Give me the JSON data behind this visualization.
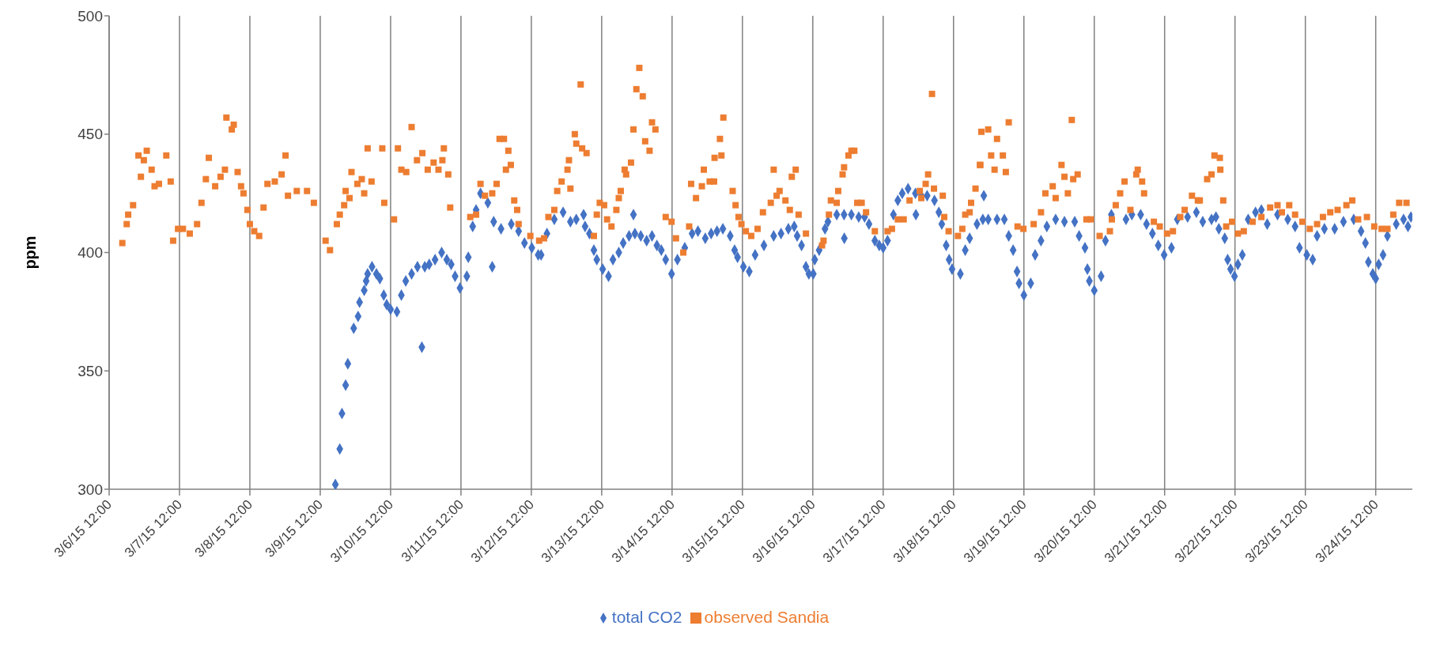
{
  "chart_data": {
    "type": "scatter",
    "ylabel": "ppm",
    "xlim": [
      "--03-06T12:00",
      "--03-25T00:30"
    ],
    "ylim": [
      300,
      500
    ],
    "yticks": [
      300,
      350,
      400,
      450,
      500
    ],
    "xticks": [
      {
        "value": "--03-06T12:00",
        "label": "3/6/15 12:00"
      },
      {
        "value": "--03-07T12:00",
        "label": "3/7/15 12:00"
      },
      {
        "value": "--03-08T12:00",
        "label": "3/8/15 12:00"
      },
      {
        "value": "--03-09T12:00",
        "label": "3/9/15 12:00"
      },
      {
        "value": "--03-10T12:00",
        "label": "3/10/15 12:00"
      },
      {
        "value": "--03-11T12:00",
        "label": "3/11/15 12:00"
      },
      {
        "value": "--03-12T12:00",
        "label": "3/12/15 12:00"
      },
      {
        "value": "--03-13T12:00",
        "label": "3/13/15 12:00"
      },
      {
        "value": "--03-14T12:00",
        "label": "3/14/15 12:00"
      },
      {
        "value": "--03-15T12:00",
        "label": "3/15/15 12:00"
      },
      {
        "value": "--03-16T12:00",
        "label": "3/16/15 12:00"
      },
      {
        "value": "--03-17T12:00",
        "label": "3/17/15 12:00"
      },
      {
        "value": "--03-18T12:00",
        "label": "3/18/15 12:00"
      },
      {
        "value": "--03-19T12:00",
        "label": "3/19/15 12:00"
      },
      {
        "value": "--03-20T12:00",
        "label": "3/20/15 12:00"
      },
      {
        "value": "--03-21T12:00",
        "label": "3/21/15 12:00"
      },
      {
        "value": "--03-22T12:00",
        "label": "3/22/15 12:00"
      },
      {
        "value": "--03-23T12:00",
        "label": "3/23/15 12:00"
      },
      {
        "value": "--03-24T12:00",
        "label": "3/24/15 12:00"
      }
    ],
    "grid": "x",
    "legend": "bottom",
    "series": [
      {
        "name": "total CO2",
        "color": "#4472c4",
        "marker": "diamond",
        "x": [
          "--03-09T17:10",
          "--03-09T18:40",
          "--03-09T19:25",
          "--03-09T20:40",
          "--03-09T21:25",
          "--03-09T23:25",
          "--03-10T00:55",
          "--03-10T01:25",
          "--03-10T03:00",
          "--03-10T03:40",
          "--03-10T04:10",
          "--03-10T05:40",
          "--03-10T07:10",
          "--03-10T08:20",
          "--03-10T09:40",
          "--03-10T10:40",
          "--03-10T12:00",
          "--03-10T14:10",
          "--03-10T15:40",
          "--03-10T17:10",
          "--03-10T19:10",
          "--03-10T21:10",
          "--03-10T22:40",
          "--03-10T23:40",
          "--03-11T01:10",
          "--03-11T03:10",
          "--03-11T05:25",
          "--03-11T07:10",
          "--03-11T08:40",
          "--03-11T10:00",
          "--03-11T11:40",
          "--03-11T14:00",
          "--03-11T14:30",
          "--03-11T16:00",
          "--03-11T17:10",
          "--03-11T18:40",
          "--03-11T21:10",
          "--03-11T22:40",
          "--03-11T23:10",
          "--03-12T01:40",
          "--03-12T05:10",
          "--03-12T07:40",
          "--03-12T09:40",
          "--03-12T12:10",
          "--03-12T14:20",
          "--03-12T15:20",
          "--03-12T17:20",
          "--03-12T19:50",
          "--03-12T22:50",
          "--03-13T01:20",
          "--03-13T03:20",
          "--03-13T05:50",
          "--03-13T06:20",
          "--03-13T07:50",
          "--03-13T09:20",
          "--03-13T10:20",
          "--03-13T12:20",
          "--03-13T14:20",
          "--03-13T15:50",
          "--03-13T17:50",
          "--03-13T19:20",
          "--03-13T21:20",
          "--03-13T22:50",
          "--03-13T23:20",
          "--03-14T01:20",
          "--03-14T03:20",
          "--03-14T05:10",
          "--03-14T06:50",
          "--03-14T08:20",
          "--03-14T09:50",
          "--03-14T11:50",
          "--03-14T13:50",
          "--03-14T16:20",
          "--03-14T18:50",
          "--03-14T20:50",
          "--03-14T23:20",
          "--03-15T01:20",
          "--03-15T03:20",
          "--03-15T05:20",
          "--03-15T07:50",
          "--03-15T09:20",
          "--03-15T10:20",
          "--03-15T12:20",
          "--03-15T14:20",
          "--03-15T16:20",
          "--03-15T19:20",
          "--03-15T22:40",
          "--03-16T01:10",
          "--03-16T03:40",
          "--03-16T05:40",
          "--03-16T06:40",
          "--03-16T08:10",
          "--03-16T09:40",
          "--03-16T10:40",
          "--03-16T12:10",
          "--03-16T12:40",
          "--03-16T14:10",
          "--03-16T16:10",
          "--03-16T17:10",
          "--03-16T20:10",
          "--03-16T22:40",
          "--03-16T22:45",
          "--03-17T01:10",
          "--03-17T03:40",
          "--03-17T05:40",
          "--03-17T07:10",
          "--03-17T09:10",
          "--03-17T10:40",
          "--03-17T12:00",
          "--03-17T13:30",
          "--03-17T15:30",
          "--03-17T17:00",
          "--03-17T18:30",
          "--03-17T20:30",
          "--03-17T23:00",
          "--03-17T23:10",
          "--03-18T01:00",
          "--03-18T03:00",
          "--03-18T05:30",
          "--03-18T07:00",
          "--03-18T08:00",
          "--03-18T09:30",
          "--03-18T10:30",
          "--03-18T11:30",
          "--03-18T14:20",
          "--03-18T16:00",
          "--03-18T17:30",
          "--03-18T20:00",
          "--03-18T22:00",
          "--03-18T22:20",
          "--03-18T23:50",
          "--03-19T02:50",
          "--03-19T05:20",
          "--03-19T06:50",
          "--03-19T08:20",
          "--03-19T09:40",
          "--03-19T10:20",
          "--03-19T12:00",
          "--03-19T14:20",
          "--03-19T15:50",
          "--03-19T17:50",
          "--03-19T19:50",
          "--03-19T22:50",
          "--03-20T01:50",
          "--03-20T05:20",
          "--03-20T06:50",
          "--03-20T08:50",
          "--03-20T09:40",
          "--03-20T10:20",
          "--03-20T12:00",
          "--03-20T14:20",
          "--03-20T15:50",
          "--03-20T17:50",
          "--03-20T22:50",
          "--03-21T00:50",
          "--03-21T03:50",
          "--03-21T05:50",
          "--03-21T07:50",
          "--03-21T09:50",
          "--03-21T11:50",
          "--03-21T14:20",
          "--03-21T16:20",
          "--03-21T19:50",
          "--03-21T22:50",
          "--03-22T01:00",
          "--03-22T04:00",
          "--03-22T05:30",
          "--03-22T06:30",
          "--03-22T08:30",
          "--03-22T09:30",
          "--03-22T10:30",
          "--03-22T11:50",
          "--03-22T13:00",
          "--03-22T14:30",
          "--03-22T16:30",
          "--03-22T19:00",
          "--03-22T21:00",
          "--03-22T23:00",
          "--03-23T02:30",
          "--03-23T06:00",
          "--03-23T08:30",
          "--03-23T10:00",
          "--03-23T12:30",
          "--03-23T14:30",
          "--03-23T16:00",
          "--03-23T18:30",
          "--03-23T22:00",
          "--03-24T01:00",
          "--03-24T04:30",
          "--03-24T07:00",
          "--03-24T08:30",
          "--03-24T09:30",
          "--03-24T11:00",
          "--03-24T12:00",
          "--03-24T13:00",
          "--03-24T14:30",
          "--03-24T16:00",
          "--03-24T19:00",
          "--03-24T21:30",
          "--03-24T23:00",
          "--03-25T00:00"
        ],
        "values": [
          302,
          317,
          332,
          344,
          353,
          368,
          373,
          379,
          384,
          388,
          391,
          394,
          391,
          389,
          382,
          378,
          376,
          375,
          382,
          388,
          391,
          394,
          360,
          394,
          395,
          397,
          400,
          397,
          395,
          390,
          385,
          390,
          398,
          411,
          418,
          425,
          421,
          394,
          413,
          410,
          412,
          409,
          404,
          402,
          399,
          399,
          408,
          414,
          417,
          413,
          414,
          416,
          411,
          408,
          401,
          397,
          393,
          390,
          397,
          400,
          404,
          407,
          416,
          408,
          407,
          405,
          407,
          403,
          401,
          397,
          391,
          397,
          402,
          408,
          409,
          406,
          408,
          409,
          410,
          407,
          401,
          398,
          394,
          392,
          399,
          403,
          407,
          408,
          410,
          411,
          407,
          403,
          394,
          391,
          391,
          397,
          401,
          410,
          413,
          416,
          416,
          406,
          416,
          415,
          415,
          412,
          405,
          403,
          402,
          405,
          416,
          422,
          425,
          427,
          425,
          416,
          424,
          424,
          422,
          417,
          412,
          403,
          397,
          393,
          391,
          401,
          406,
          412,
          414,
          424,
          414,
          414,
          414,
          407,
          401,
          392,
          387,
          382,
          387,
          399,
          405,
          411,
          414,
          413,
          413,
          407,
          402,
          393,
          388,
          384,
          390,
          405,
          416,
          414,
          416,
          416,
          412,
          408,
          403,
          399,
          402,
          414,
          415,
          417,
          413,
          414,
          415,
          410,
          406,
          397,
          393,
          390,
          395,
          399,
          414,
          417,
          418,
          412,
          416,
          414,
          411,
          402,
          399,
          397,
          407,
          410,
          410,
          413,
          414,
          409,
          404,
          396,
          391,
          389,
          395,
          399,
          407,
          412,
          414,
          411,
          415
        ]
      },
      {
        "name": "observed Sandia",
        "color": "#ed7d31",
        "marker": "square",
        "x": [
          "--03-06T16:30",
          "--03-06T18:00",
          "--03-06T18:30",
          "--03-06T20:10",
          "--03-06T22:00",
          "--03-06T22:50",
          "--03-06T23:50",
          "--03-07T00:50",
          "--03-07T02:30",
          "--03-07T03:30",
          "--03-07T05:00",
          "--03-07T07:30",
          "--03-07T09:00",
          "--03-07T09:50",
          "--03-07T11:30",
          "--03-07T13:10",
          "--03-07T15:30",
          "--03-07T18:00",
          "--03-07T19:30",
          "--03-07T21:00",
          "--03-07T22:00",
          "--03-08T00:10",
          "--03-08T02:00",
          "--03-08T03:30",
          "--03-08T04:00",
          "--03-08T05:50",
          "--03-08T06:30",
          "--03-08T07:50",
          "--03-08T09:00",
          "--03-08T09:50",
          "--03-08T11:10",
          "--03-08T12:00",
          "--03-08T13:30",
          "--03-08T15:10",
          "--03-08T16:40",
          "--03-08T18:00",
          "--03-08T20:30",
          "--03-08T22:50",
          "--03-09T00:10",
          "--03-09T01:00",
          "--03-09T04:00",
          "--03-09T07:30",
          "--03-09T09:50",
          "--03-09T13:50",
          "--03-09T15:20",
          "--03-09T17:40",
          "--03-09T18:40",
          "--03-09T20:10",
          "--03-09T20:40",
          "--03-09T22:00",
          "--03-09T22:40",
          "--03-10T00:40",
          "--03-10T02:10",
          "--03-10T03:00",
          "--03-10T04:10",
          "--03-10T05:30",
          "--03-10T09:10",
          "--03-10T09:50",
          "--03-10T13:10",
          "--03-10T14:30",
          "--03-10T15:40",
          "--03-10T17:20",
          "--03-10T19:10",
          "--03-10T21:00",
          "--03-10T22:50",
          "--03-11T00:40",
          "--03-11T02:40",
          "--03-11T04:20",
          "--03-11T05:40",
          "--03-11T06:10",
          "--03-11T07:40",
          "--03-11T08:20",
          "--03-11T15:10",
          "--03-11T17:10",
          "--03-11T18:40",
          "--03-11T20:10",
          "--03-11T22:40",
          "--03-12T00:10",
          "--03-12T01:10",
          "--03-12T02:40",
          "--03-12T03:20",
          "--03-12T04:10",
          "--03-12T05:00",
          "--03-12T06:10",
          "--03-12T07:10",
          "--03-12T07:40",
          "--03-12T11:40",
          "--03-12T14:40",
          "--03-12T16:20",
          "--03-12T17:50",
          "--03-12T19:50",
          "--03-12T20:50",
          "--03-12T22:20",
          "--03-13T00:20",
          "--03-13T00:50",
          "--03-13T01:20",
          "--03-13T02:50",
          "--03-13T03:20",
          "--03-13T04:50",
          "--03-13T05:20",
          "--03-13T06:50",
          "--03-13T09:20",
          "--03-13T10:20",
          "--03-13T11:20",
          "--03-13T12:50",
          "--03-13T13:50",
          "--03-13T15:20",
          "--03-13T17:00",
          "--03-13T17:50",
          "--03-13T18:30",
          "--03-13T19:50",
          "--03-13T20:20",
          "--03-13T22:00",
          "--03-13T22:50",
          "--03-13T23:50",
          "--03-14T00:50",
          "--03-14T02:00",
          "--03-14T02:50",
          "--03-14T04:20",
          "--03-14T05:10",
          "--03-14T06:20",
          "--03-14T09:50",
          "--03-14T11:50",
          "--03-14T13:20",
          "--03-14T15:50",
          "--03-14T17:50",
          "--03-14T18:30",
          "--03-14T20:10",
          "--03-14T22:10",
          "--03-14T22:50",
          "--03-15T00:50",
          "--03-15T02:20",
          "--03-15T02:30",
          "--03-15T04:20",
          "--03-15T04:50",
          "--03-15T05:30",
          "--03-15T08:40",
          "--03-15T09:40",
          "--03-15T10:40",
          "--03-15T11:40",
          "--03-15T13:10",
          "--03-15T15:00",
          "--03-15T17:10",
          "--03-15T19:00",
          "--03-15T21:40",
          "--03-15T22:40",
          "--03-15T23:40",
          "--03-16T00:40",
          "--03-16T02:40",
          "--03-16T04:10",
          "--03-16T04:50",
          "--03-16T06:10",
          "--03-16T07:10",
          "--03-16T09:40",
          "--03-16T15:10",
          "--03-16T15:40",
          "--03-16T17:30",
          "--03-16T18:10",
          "--03-16T20:10",
          "--03-16T20:40",
          "--03-16T22:10",
          "--03-16T22:40",
          "--03-17T00:10",
          "--03-17T01:10",
          "--03-17T02:10",
          "--03-17T03:10",
          "--03-17T04:40",
          "--03-17T06:10",
          "--03-17T09:10",
          "--03-17T13:30",
          "--03-17T15:00",
          "--03-17T17:00",
          "--03-17T19:00",
          "--03-17T21:00",
          "--03-18T00:30",
          "--03-18T01:00",
          "--03-18T02:30",
          "--03-18T03:20",
          "--03-18T04:40",
          "--03-18T05:20",
          "--03-18T08:20",
          "--03-18T08:50",
          "--03-18T10:20",
          "--03-18T13:30",
          "--03-18T15:00",
          "--03-18T16:00",
          "--03-18T17:30",
          "--03-18T18:00",
          "--03-18T19:30",
          "--03-18T21:00",
          "--03-18T21:30",
          "--03-18T21:10",
          "--03-18T23:50",
          "--03-19T00:50",
          "--03-19T02:00",
          "--03-19T02:50",
          "--03-19T04:50",
          "--03-19T05:50",
          "--03-19T06:50",
          "--03-19T09:50",
          "--03-19T11:50",
          "--03-19T15:20",
          "--03-19T17:50",
          "--03-19T19:20",
          "--03-19T21:50",
          "--03-19T22:50",
          "--03-20T00:50",
          "--03-20T01:50",
          "--03-20T03:00",
          "--03-20T04:20",
          "--03-20T04:50",
          "--03-20T06:20",
          "--03-20T09:20",
          "--03-20T10:50",
          "--03-20T13:50",
          "--03-20T17:20",
          "--03-20T18:00",
          "--03-20T19:20",
          "--03-20T20:50",
          "--03-20T22:20",
          "--03-21T00:20",
          "--03-21T02:20",
          "--03-21T02:50",
          "--03-21T04:20",
          "--03-21T05:00",
          "--03-21T08:20",
          "--03-21T10:20",
          "--03-21T12:50",
          "--03-21T14:50",
          "--03-21T17:20",
          "--03-21T18:50",
          "--03-21T21:20",
          "--03-21T23:20",
          "--03-22T00:00",
          "--03-22T02:30",
          "--03-22T04:00",
          "--03-22T05:00",
          "--03-22T06:50",
          "--03-22T07:00",
          "--03-22T08:00",
          "--03-22T09:00",
          "--03-22T11:00",
          "--03-22T13:00",
          "--03-22T15:00",
          "--03-22T18:00",
          "--03-22T21:00",
          "--03-23T00:00",
          "--03-23T02:30",
          "--03-23T04:00",
          "--03-23T06:30",
          "--03-23T08:30",
          "--03-23T11:00",
          "--03-23T13:30",
          "--03-23T16:00",
          "--03-23T18:00",
          "--03-23T20:30",
          "--03-23T23:00",
          "--03-24T02:00",
          "--03-24T04:00",
          "--03-24T06:00",
          "--03-24T09:00",
          "--03-24T11:30",
          "--03-24T14:00",
          "--03-24T16:00",
          "--03-24T18:00",
          "--03-24T20:00",
          "--03-24T22:30"
        ],
        "values": [
          404,
          412,
          416,
          420,
          441,
          432,
          439,
          443,
          435,
          428,
          429,
          441,
          430,
          405,
          410,
          410,
          408,
          412,
          421,
          431,
          440,
          428,
          432,
          435,
          457,
          452,
          454,
          434,
          428,
          425,
          418,
          412,
          409,
          407,
          419,
          429,
          430,
          433,
          441,
          424,
          426,
          426,
          421,
          405,
          401,
          412,
          416,
          420,
          426,
          423,
          434,
          429,
          431,
          425,
          444,
          430,
          444,
          421,
          414,
          444,
          435,
          434,
          453,
          439,
          442,
          435,
          438,
          435,
          439,
          444,
          433,
          419,
          415,
          416,
          429,
          424,
          425,
          429,
          448,
          448,
          435,
          443,
          437,
          422,
          418,
          412,
          407,
          405,
          406,
          415,
          418,
          426,
          430,
          435,
          439,
          427,
          450,
          446,
          471,
          444,
          442,
          407,
          416,
          421,
          420,
          414,
          411,
          418,
          423,
          426,
          435,
          433,
          438,
          452,
          469,
          478,
          466,
          447,
          443,
          455,
          452,
          415,
          413,
          406,
          400,
          411,
          429,
          423,
          428,
          435,
          430,
          430,
          440,
          448,
          441,
          457,
          426,
          420,
          415,
          412,
          409,
          407,
          410,
          417,
          421,
          435,
          424,
          426,
          422,
          418,
          432,
          435,
          416,
          408,
          403,
          405,
          416,
          422,
          421,
          426,
          433,
          436,
          441,
          443,
          443,
          421,
          421,
          417,
          409,
          409,
          410,
          414,
          414,
          422,
          426,
          423,
          429,
          433,
          467,
          427,
          424,
          415,
          409,
          407,
          410,
          416,
          417,
          421,
          427,
          437,
          451,
          437,
          452,
          441,
          435,
          448,
          441,
          434,
          455,
          411,
          410,
          412,
          417,
          425,
          428,
          423,
          437,
          432,
          425,
          456,
          431,
          433,
          414,
          414,
          407,
          409,
          414,
          420,
          425,
          430,
          418,
          433,
          435,
          430,
          425,
          413,
          411,
          408,
          409,
          415,
          418,
          424,
          422,
          422,
          431,
          433,
          441,
          440,
          435,
          422,
          411,
          413,
          408,
          409,
          413,
          415,
          419,
          420,
          417,
          420,
          416,
          413,
          410,
          412,
          415,
          417,
          418,
          420,
          422,
          414,
          415,
          411,
          410,
          410,
          416,
          421,
          421
        ]
      }
    ]
  }
}
